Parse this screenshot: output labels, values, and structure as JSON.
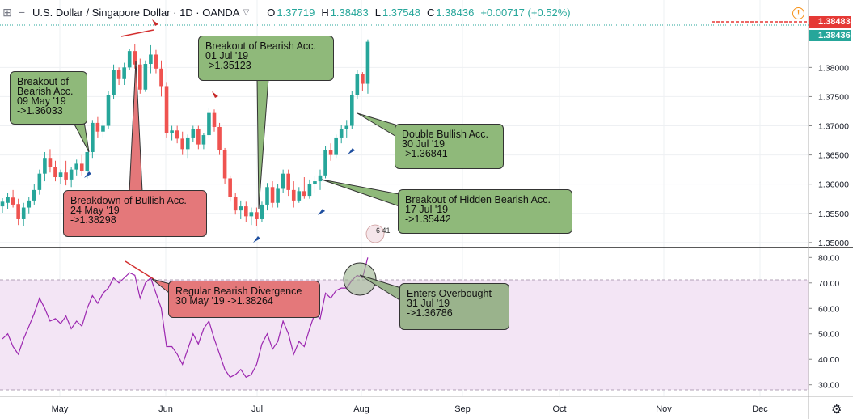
{
  "header": {
    "title": "U.S. Dollar / Singapore Dollar · 1D · OANDA",
    "open_label": "O",
    "open": "1.37719",
    "high_label": "H",
    "high": "1.38483",
    "low_label": "L",
    "low": "1.37548",
    "close_label": "C",
    "close": "1.38436",
    "change": "+0.00717 (+0.52%)",
    "icons": [
      "crosshair-icon",
      "minimize-icon",
      "chevron-down-icon",
      "alert-icon"
    ]
  },
  "price_tags": {
    "high": "1.38483",
    "last": "1.38436"
  },
  "indicator_badge": "6 41",
  "colors": {
    "up": "#26a69a",
    "down": "#ef5350",
    "rsi_line": "#9c27b0",
    "rsi_band": "#f3e5f5",
    "high_line": "#e53935",
    "price_tag_bg": "#26a69a"
  },
  "annotations": [
    {
      "id": "a1",
      "color": "green",
      "lines": [
        "Breakout of",
        "Bearish Acc.",
        "09 May '19",
        "->1.36033"
      ]
    },
    {
      "id": "a2",
      "color": "red",
      "lines": [
        "Breakdown of Bullish Acc.",
        "24 May '19",
        "->1.38298"
      ]
    },
    {
      "id": "a3",
      "color": "green",
      "lines": [
        "Breakout of Bearish Acc.",
        "01 Jul '19",
        "->1.35123"
      ]
    },
    {
      "id": "a4",
      "color": "green",
      "lines": [
        "Double Bullish Acc.",
        "30 Jul '19",
        "->1.36841"
      ]
    },
    {
      "id": "a5",
      "color": "green",
      "lines": [
        "Breakout of Hidden Bearish Acc.",
        "17 Jul '19",
        "->1.35442"
      ]
    },
    {
      "id": "a6",
      "color": "red",
      "lines": [
        "Regular Bearish Divergence",
        "30 May '19 ->1.38264"
      ]
    },
    {
      "id": "a7",
      "color": "gray",
      "lines": [
        "Enters Overbought",
        "31 Jul '19",
        "->1.36786"
      ]
    }
  ],
  "chart_data": [
    {
      "type": "candlestick",
      "title": "U.S. Dollar / Singapore Dollar · 1D · OANDA",
      "x_ticks": [
        "May",
        "Jun",
        "Jul",
        "Aug",
        "Sep",
        "Oct",
        "Nov",
        "Dec"
      ],
      "y_ticks": [
        "1.38000",
        "1.37500",
        "1.37000",
        "1.36500",
        "1.36000",
        "1.35500",
        "1.35000"
      ],
      "ylim": [
        1.3497,
        1.3867
      ],
      "grid": true,
      "ohlc": [
        [
          1.3562,
          1.3576,
          1.3551,
          1.357
        ],
        [
          1.3568,
          1.3585,
          1.3558,
          1.3578
        ],
        [
          1.3577,
          1.359,
          1.356,
          1.3565
        ],
        [
          1.3566,
          1.3575,
          1.353,
          1.354
        ],
        [
          1.354,
          1.3568,
          1.3528,
          1.356
        ],
        [
          1.356,
          1.3578,
          1.355,
          1.3572
        ],
        [
          1.3572,
          1.36,
          1.3565,
          1.359
        ],
        [
          1.359,
          1.3625,
          1.3582,
          1.3618
        ],
        [
          1.3618,
          1.3655,
          1.3605,
          1.3645
        ],
        [
          1.3645,
          1.366,
          1.362,
          1.363
        ],
        [
          1.363,
          1.364,
          1.3605,
          1.3612
        ],
        [
          1.3612,
          1.3625,
          1.36,
          1.362
        ],
        [
          1.362,
          1.364,
          1.3598,
          1.3608
        ],
        [
          1.3608,
          1.363,
          1.3595,
          1.3625
        ],
        [
          1.3625,
          1.3642,
          1.3615,
          1.3635
        ],
        [
          1.3635,
          1.365,
          1.3615,
          1.3622
        ],
        [
          1.3622,
          1.366,
          1.361,
          1.3655
        ],
        [
          1.3655,
          1.371,
          1.3645,
          1.3705
        ],
        [
          1.3705,
          1.3715,
          1.368,
          1.369
        ],
        [
          1.369,
          1.371,
          1.368,
          1.37
        ],
        [
          1.37,
          1.376,
          1.3695,
          1.3752
        ],
        [
          1.3752,
          1.3805,
          1.3745,
          1.3795
        ],
        [
          1.3795,
          1.38,
          1.377,
          1.378
        ],
        [
          1.378,
          1.3808,
          1.377,
          1.38
        ],
        [
          1.38,
          1.3832,
          1.3795,
          1.3828
        ],
        [
          1.3828,
          1.384,
          1.3798,
          1.3805
        ],
        [
          1.3805,
          1.3815,
          1.3755,
          1.3762
        ],
        [
          1.3762,
          1.3812,
          1.3758,
          1.3806
        ],
        [
          1.3806,
          1.3838,
          1.379,
          1.3822
        ],
        [
          1.3822,
          1.383,
          1.379,
          1.3798
        ],
        [
          1.3798,
          1.3812,
          1.375,
          1.3768
        ],
        [
          1.3768,
          1.3775,
          1.368,
          1.3688
        ],
        [
          1.3688,
          1.37,
          1.3675,
          1.3692
        ],
        [
          1.3692,
          1.37,
          1.367,
          1.3678
        ],
        [
          1.3678,
          1.369,
          1.365,
          1.366
        ],
        [
          1.366,
          1.3685,
          1.3645,
          1.368
        ],
        [
          1.368,
          1.37,
          1.3672,
          1.3695
        ],
        [
          1.3695,
          1.37,
          1.366,
          1.3668
        ],
        [
          1.3668,
          1.3688,
          1.366,
          1.3684
        ],
        [
          1.3684,
          1.373,
          1.368,
          1.3722
        ],
        [
          1.3722,
          1.3728,
          1.369,
          1.3698
        ],
        [
          1.3698,
          1.3705,
          1.365,
          1.3658
        ],
        [
          1.3658,
          1.3662,
          1.36,
          1.361
        ],
        [
          1.361,
          1.3615,
          1.357,
          1.3578
        ],
        [
          1.3578,
          1.3585,
          1.3548,
          1.3555
        ],
        [
          1.3555,
          1.3572,
          1.354,
          1.3562
        ],
        [
          1.3562,
          1.357,
          1.3535,
          1.3545
        ],
        [
          1.3545,
          1.356,
          1.353,
          1.3552
        ],
        [
          1.3552,
          1.356,
          1.3528,
          1.354
        ],
        [
          1.354,
          1.357,
          1.3535,
          1.3565
        ],
        [
          1.3565,
          1.3602,
          1.3555,
          1.3595
        ],
        [
          1.3595,
          1.3605,
          1.356,
          1.3568
        ],
        [
          1.3568,
          1.36,
          1.356,
          1.3592
        ],
        [
          1.3592,
          1.3625,
          1.3585,
          1.3618
        ],
        [
          1.3618,
          1.3625,
          1.358,
          1.359
        ],
        [
          1.359,
          1.3605,
          1.356,
          1.3572
        ],
        [
          1.3572,
          1.3595,
          1.3568,
          1.3588
        ],
        [
          1.3588,
          1.3612,
          1.3575,
          1.358
        ],
        [
          1.358,
          1.3608,
          1.3575,
          1.36
        ],
        [
          1.36,
          1.3615,
          1.3585,
          1.3605
        ],
        [
          1.3605,
          1.3625,
          1.359,
          1.3615
        ],
        [
          1.3615,
          1.3665,
          1.361,
          1.3658
        ],
        [
          1.3658,
          1.367,
          1.364,
          1.365
        ],
        [
          1.365,
          1.3685,
          1.3645,
          1.368
        ],
        [
          1.368,
          1.3702,
          1.367,
          1.3694
        ],
        [
          1.3694,
          1.371,
          1.368,
          1.37
        ],
        [
          1.37,
          1.376,
          1.3695,
          1.3752
        ],
        [
          1.3752,
          1.3795,
          1.3745,
          1.3788
        ],
        [
          1.3788,
          1.3792,
          1.376,
          1.3772
        ],
        [
          1.3772,
          1.3848,
          1.3755,
          1.3844
        ]
      ]
    },
    {
      "type": "line",
      "title": "",
      "ylim": [
        28,
        82
      ],
      "y_ticks": [
        "80.00",
        "70.00",
        "60.00",
        "50.00",
        "40.00",
        "30.00"
      ],
      "overbought": 70,
      "oversold": 30,
      "series": [
        {
          "values": [
            48,
            50,
            45,
            42,
            48,
            53,
            58,
            64,
            60,
            55,
            56,
            54,
            57,
            52,
            55,
            53,
            60,
            65,
            62,
            66,
            68,
            72,
            70,
            72,
            74,
            73,
            64,
            70,
            72,
            66,
            60,
            45,
            45,
            42,
            38,
            44,
            50,
            46,
            52,
            55,
            48,
            42,
            36,
            33,
            34,
            36,
            33,
            34,
            38,
            46,
            50,
            44,
            47,
            55,
            50,
            42,
            47,
            45,
            52,
            58,
            56,
            66,
            64,
            67,
            68,
            68,
            71,
            73,
            72,
            80
          ]
        }
      ]
    }
  ]
}
